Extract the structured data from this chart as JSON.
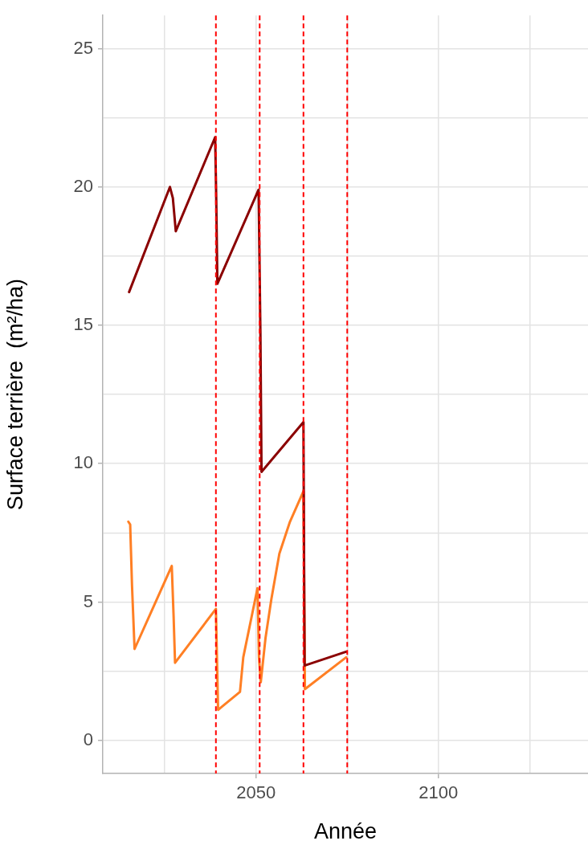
{
  "chart_data": {
    "type": "line",
    "xlabel": "Année",
    "ylabel": "Surface terrière  (m²/ha)",
    "xlim": [
      2008,
      2141
    ],
    "ylim": [
      -1.2,
      26.2
    ],
    "xticks": [
      {
        "value": 2025,
        "label": null
      },
      2050,
      {
        "value": 2075,
        "label": null
      },
      2100,
      {
        "value": 2125,
        "label": null
      }
    ],
    "yticks": [
      0,
      {
        "value": 2.5,
        "label": null
      },
      5,
      {
        "value": 7.5,
        "label": null
      },
      10,
      {
        "value": 12.5,
        "label": null
      },
      15,
      {
        "value": 17.5,
        "label": null
      },
      20,
      {
        "value": 22.5,
        "label": null
      },
      25
    ],
    "grid": true,
    "legend": false,
    "marker": "none",
    "line_style": "solid",
    "series": [
      {
        "color": "#8b0000",
        "x": [
          2015.2,
          2026.4,
          2027.2,
          2028,
          2038.8,
          2039.1,
          2039.4,
          2050.7,
          2051.2,
          2051.5,
          2063,
          2063.3,
          2074.7
        ],
        "values": [
          16.2,
          20.0,
          19.6,
          18.4,
          21.8,
          19.5,
          16.5,
          19.9,
          14.75,
          9.7,
          11.5,
          2.7,
          3.2
        ]
      },
      {
        "color": "#ff7f24",
        "x": [
          2015.0,
          2015.5,
          2016.0,
          2016.7,
          2026.9,
          2027.4,
          2027.8,
          2039.0,
          2039.6,
          2040.5,
          2045.6,
          2046.5,
          2050.4,
          2050.8,
          2051.3,
          2052.6,
          2054.2,
          2056.4,
          2059.3,
          2063.0,
          2063.4,
          2074.7
        ],
        "values": [
          7.9,
          7.8,
          5.6,
          3.3,
          6.3,
          4.5,
          2.8,
          4.75,
          1.1,
          1.2,
          1.75,
          3.0,
          5.5,
          3.0,
          2.1,
          3.7,
          5.1,
          6.75,
          7.9,
          9.0,
          1.85,
          3.0
        ]
      }
    ],
    "ref_lines": [
      {
        "axis": "x",
        "value": 2039,
        "color": "#ff0000",
        "line_style": "dashed"
      },
      {
        "axis": "x",
        "value": 2051,
        "color": "#ff0000",
        "line_style": "dashed"
      },
      {
        "axis": "x",
        "value": 2063,
        "color": "#ff0000",
        "line_style": "dashed"
      },
      {
        "axis": "x",
        "value": 2075,
        "color": "#ff0000",
        "line_style": "dashed"
      }
    ]
  }
}
